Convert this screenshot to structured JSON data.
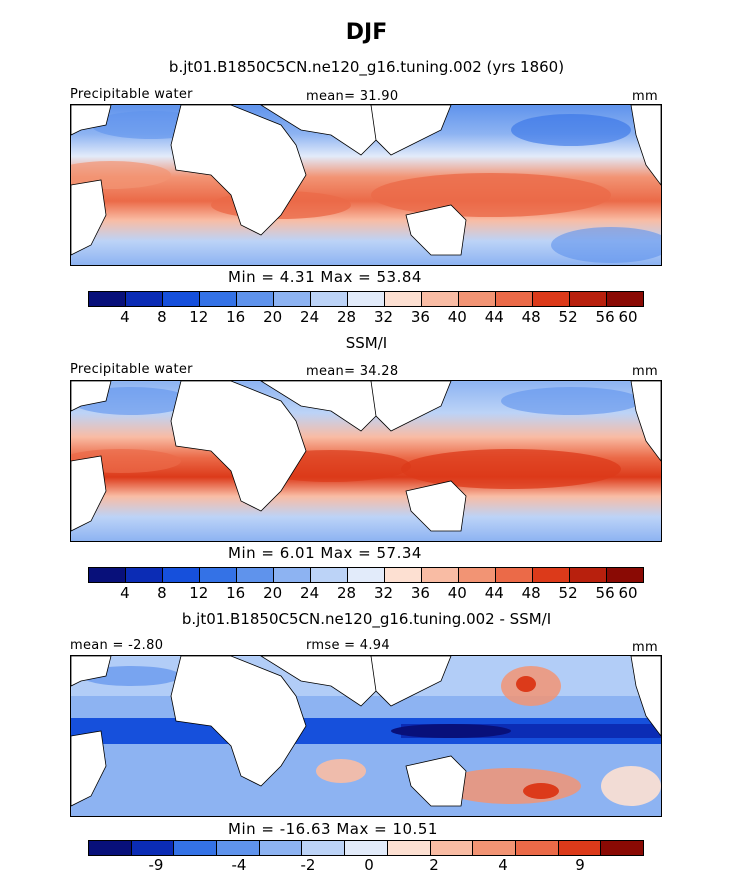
{
  "title": "DJF",
  "panels": [
    {
      "subtitle": "b.jt01.B1850C5CN.ne120_g16.tuning.002 (yrs 1860)",
      "left_label": "Precipitable water",
      "center_label": "mean=  31.90",
      "right_label": "mm",
      "minmax": "Min =   4.31 Max =  53.84",
      "ticks": [
        "4",
        "8",
        "12",
        "16",
        "20",
        "24",
        "28",
        "32",
        "36",
        "40",
        "44",
        "48",
        "52",
        "56",
        "60"
      ]
    },
    {
      "subtitle": "SSM/I",
      "left_label": "Precipitable water",
      "center_label": "mean=  34.28",
      "right_label": "mm",
      "minmax": "Min =   6.01 Max =  57.34",
      "ticks": [
        "4",
        "8",
        "12",
        "16",
        "20",
        "24",
        "28",
        "32",
        "36",
        "40",
        "44",
        "48",
        "52",
        "56",
        "60"
      ]
    },
    {
      "subtitle": "b.jt01.B1850C5CN.ne120_g16.tuning.002 - SSM/I",
      "left_label": "mean = -2.80",
      "center_label": "rmse =   4.94",
      "right_label": "mm",
      "minmax": "Min = -16.63 Max =  10.51",
      "ticks": [
        "-9",
        "-4",
        "-2",
        "0",
        "2",
        "4",
        "9"
      ]
    }
  ],
  "colors": {
    "scale": [
      "#08107a",
      "#0b2cb5",
      "#1650dc",
      "#3472e6",
      "#5f93ec",
      "#8db3f2",
      "#bcd3f7",
      "#e2ebfa",
      "#fde0d2",
      "#f9bca4",
      "#f29474",
      "#eb6a48",
      "#dc3a1a",
      "#b8200d",
      "#8a0a04"
    ],
    "diff_scale": [
      "#08107a",
      "#0b2cb5",
      "#3472e6",
      "#5f93ec",
      "#8db3f2",
      "#bcd3f7",
      "#e2ebfa",
      "#fde0d2",
      "#f9bca4",
      "#f29474",
      "#eb6a48",
      "#dc3a1a",
      "#8a0a04"
    ]
  }
}
